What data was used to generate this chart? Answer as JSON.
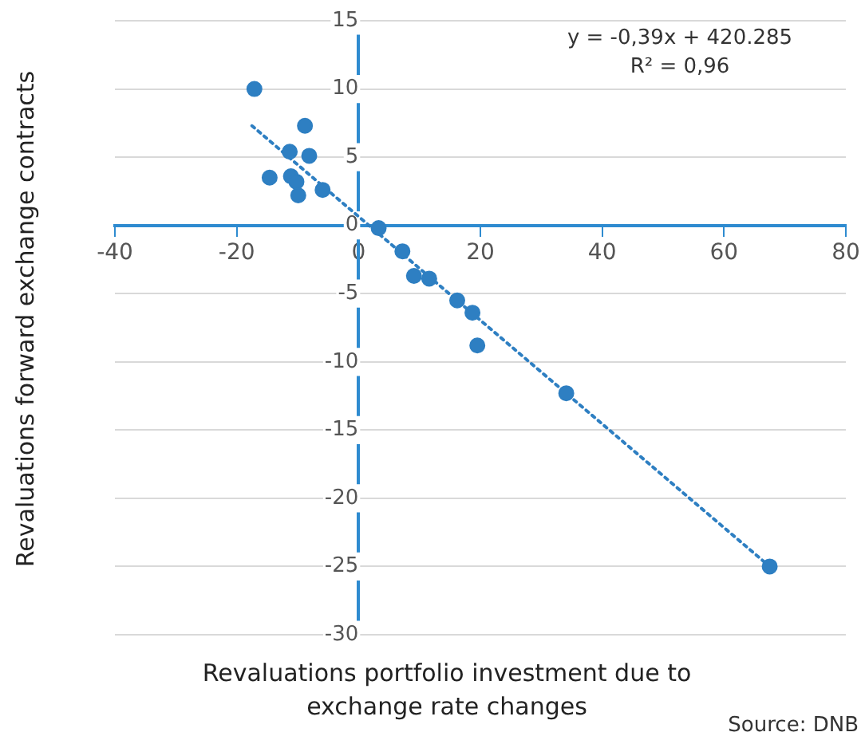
{
  "chart_data": {
    "type": "scatter",
    "xlabel": "Revaluations portfolio investment due to exchange rate changes",
    "ylabel": "Revaluations forward exchange contracts",
    "annotations": [
      "y = -0,39x + 420.285",
      "R² = 0,96",
      "Source: DNB"
    ],
    "series": [
      {
        "color": "#2e7fc2",
        "x": [
          -17.1,
          -14.6,
          -11.3,
          -8.8,
          -8.1,
          -11.1,
          -10.2,
          -9.9,
          -5.9,
          3.3,
          7.2,
          9.1,
          11.6,
          16.2,
          18.7,
          19.5,
          34.1,
          67.5
        ],
        "values": [
          10.0,
          3.5,
          5.4,
          7.3,
          5.1,
          3.6,
          3.2,
          2.2,
          2.6,
          -0.2,
          -1.9,
          -3.7,
          -3.9,
          -5.5,
          -6.4,
          -8.8,
          -12.3,
          -25.0
        ]
      },
      {
        "type": "line",
        "color": "#2e7fc2",
        "line_style": "dotted",
        "marker": "none",
        "x": [
          -17.5,
          67.5
        ],
        "values": [
          7.3,
          -25.0
        ]
      }
    ],
    "marker": "circle",
    "grid": "y",
    "legend": false,
    "xlim": [
      -40,
      80
    ],
    "xticks": [
      -40,
      -20,
      0,
      20,
      40,
      60,
      80
    ],
    "ylim": [
      -30,
      15
    ],
    "yticks": [
      -30,
      -25,
      -20,
      -15,
      -10,
      -5,
      0,
      5,
      10,
      15
    ]
  }
}
